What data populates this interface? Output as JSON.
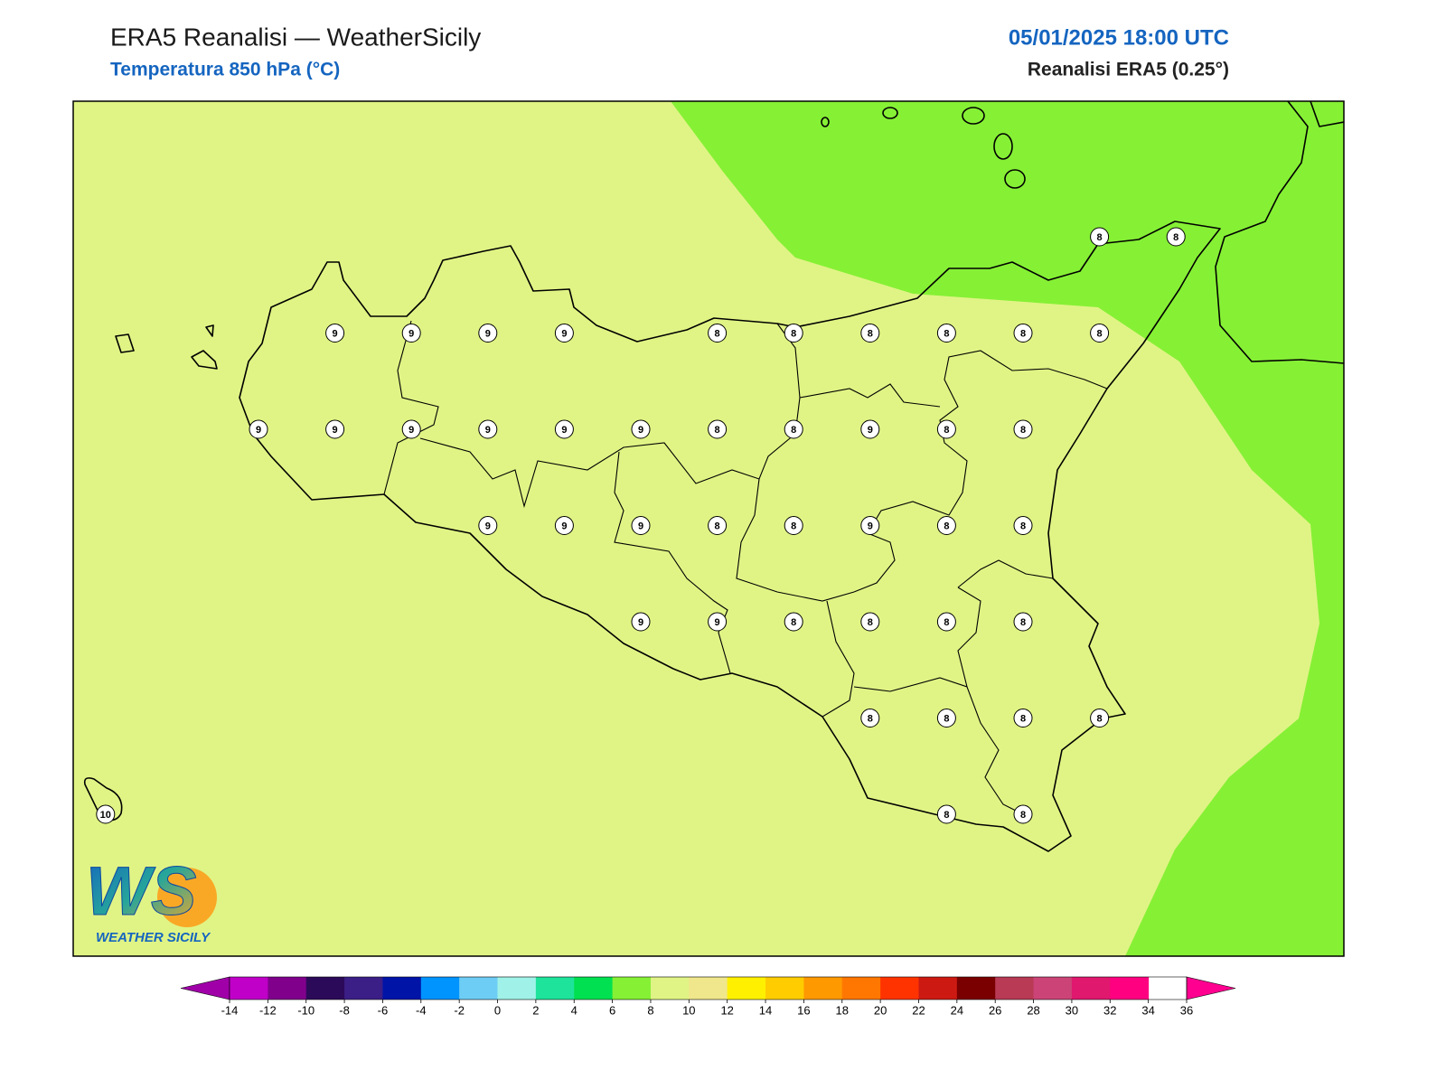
{
  "header": {
    "title": "ERA5 Reanalisi — WeatherSicily",
    "subtitle": "Temperatura 850 hPa (°C)",
    "datetime": "05/01/2025 18:00 UTC",
    "source": "Reanalisi ERA5 (0.25°)"
  },
  "map": {
    "station_values": [
      8,
      8,
      9,
      9,
      9,
      9,
      8,
      8,
      8,
      8,
      8,
      8,
      9,
      9,
      9,
      9,
      9,
      9,
      8,
      8,
      9,
      8,
      8,
      9,
      9,
      9,
      8,
      8,
      9,
      8,
      8,
      9,
      9,
      8,
      8,
      8,
      8,
      8,
      8,
      8,
      8,
      10,
      8,
      8
    ]
  },
  "logo": {
    "mark": "WS",
    "name": "WEATHER SICILY"
  },
  "colorbar": {
    "ticks": [
      -14,
      -12,
      -10,
      -8,
      -6,
      -4,
      -2,
      0,
      2,
      4,
      6,
      8,
      10,
      12,
      14,
      16,
      18,
      20,
      22,
      24,
      26,
      28,
      30,
      32,
      34,
      36
    ],
    "colors": [
      "#c000c8",
      "#80008c",
      "#2c0a5a",
      "#3b1f86",
      "#0014a8",
      "#0094ff",
      "#6ecdf5",
      "#a0f2e8",
      "#1ee39a",
      "#00e050",
      "#86f035",
      "#e0f485",
      "#f0e68c",
      "#fff000",
      "#ffcc00",
      "#ff9900",
      "#ff7700",
      "#ff3300",
      "#cc1a12",
      "#7a0000",
      "#b83a55",
      "#cc4477",
      "#e0186e",
      "#ff0080"
    ],
    "under_color": "#a000a8",
    "over_color": "#ff0090"
  }
}
